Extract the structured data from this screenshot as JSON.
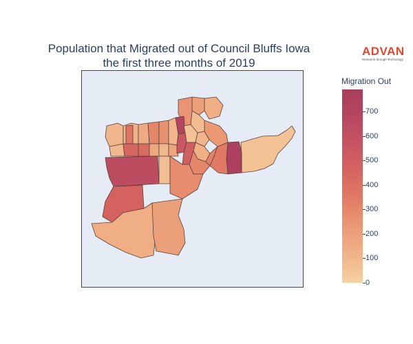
{
  "title": {
    "line1": "Population that Migrated out of Council Bluffs Iowa",
    "line2": "the first three months of 2019"
  },
  "logo": {
    "word": "ADVAN",
    "tagline": "Research through Technology"
  },
  "colorbar": {
    "title": "Migration Out",
    "min": 0,
    "max": 790,
    "ticks": [
      "0",
      "100",
      "200",
      "300",
      "400",
      "500",
      "600",
      "700"
    ],
    "colors": [
      "#f6d2a3",
      "#f0b489",
      "#eb9a76",
      "#e27c65",
      "#d66660",
      "#c85563",
      "#b6475f",
      "#a83d5d"
    ]
  },
  "map": {
    "background": "#e5ecf6",
    "outline": "#5a3e3a",
    "region_values": [
      100,
      120,
      110,
      60,
      380,
      150,
      700,
      250,
      300,
      450,
      500,
      640,
      90,
      140,
      200,
      260,
      110,
      80,
      300,
      420,
      560,
      170,
      230,
      130,
      90,
      350,
      180,
      60,
      760,
      280,
      320,
      470,
      140,
      70
    ]
  }
}
